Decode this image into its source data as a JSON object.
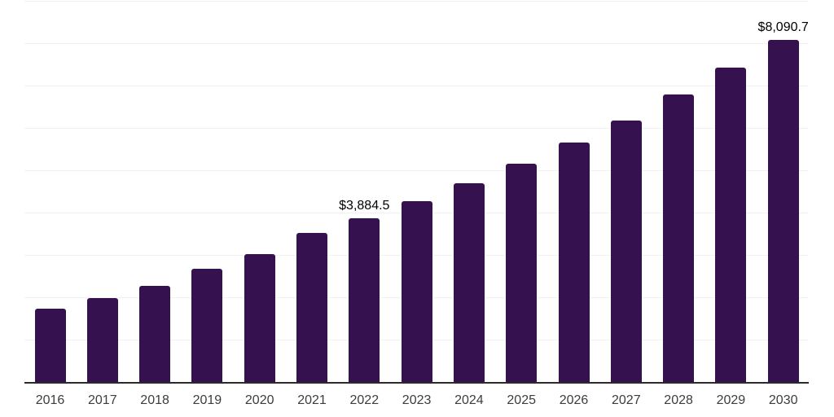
{
  "chart_data": {
    "type": "bar",
    "title": "",
    "xlabel": "",
    "ylabel": "",
    "categories": [
      "2016",
      "2017",
      "2018",
      "2019",
      "2020",
      "2021",
      "2022",
      "2023",
      "2024",
      "2025",
      "2026",
      "2027",
      "2028",
      "2029",
      "2030"
    ],
    "values": [
      1750,
      2000,
      2290,
      2700,
      3030,
      3540,
      3884.5,
      4280,
      4710,
      5175,
      5675,
      6200,
      6800,
      7440,
      8090.7
    ],
    "value_labels": {
      "2022": "$3,884.5",
      "2030": "$8,090.7"
    },
    "ylim": [
      0,
      9000
    ],
    "gridline_step": 1000,
    "grid": "horizontal",
    "legend": "none",
    "bar_color": "#351150",
    "gridline_color": "#f1f1f1",
    "axis_line_color": "#2b2b2b",
    "value_label_color": "#000000",
    "tick_label_color": "#3d3d3d"
  }
}
